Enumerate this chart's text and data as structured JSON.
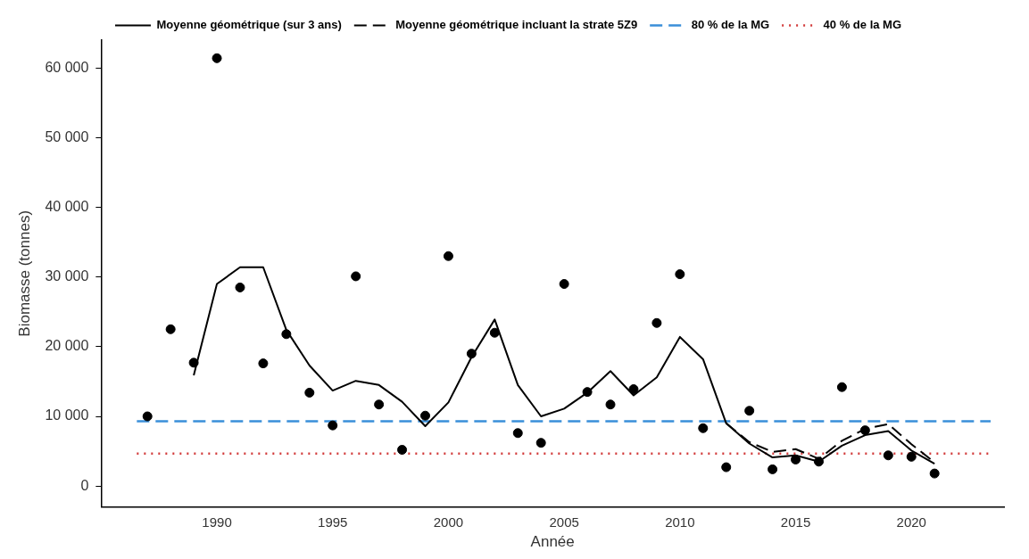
{
  "chart_data": {
    "type": "line",
    "xlabel": "Année",
    "ylabel": "Biomasse (tonnes)",
    "xlim": [
      1985,
      2024
    ],
    "xticks": [
      1990,
      1995,
      2000,
      2005,
      2010,
      2015,
      2020
    ],
    "ylim": [
      -3000,
      64000
    ],
    "yticks": [
      {
        "value": 0,
        "label": "0"
      },
      {
        "value": 10000,
        "label": "10 000"
      },
      {
        "value": 20000,
        "label": "20 000"
      },
      {
        "value": 30000,
        "label": "30 000"
      },
      {
        "value": 40000,
        "label": "40 000"
      },
      {
        "value": 50000,
        "label": "50 000"
      },
      {
        "value": 60000,
        "label": "60 000"
      }
    ],
    "grid": false,
    "legend": "top",
    "series": [
      {
        "type": "scatter",
        "marker": "circle",
        "color": "#000000",
        "x": [
          1987,
          1988,
          1989,
          1990,
          1991,
          1992,
          1993,
          1994,
          1995,
          1996,
          1997,
          1998,
          1999,
          2000,
          2001,
          2002,
          2003,
          2004,
          2005,
          2006,
          2007,
          2008,
          2009,
          2010,
          2011,
          2012,
          2013,
          2014,
          2015,
          2016,
          2017,
          2018,
          2019,
          2020,
          2021
        ],
        "values": [
          10000,
          22500,
          17700,
          61400,
          28500,
          17600,
          21800,
          13400,
          8700,
          30100,
          11700,
          5200,
          10100,
          33000,
          19000,
          22000,
          7600,
          6200,
          29000,
          13500,
          11700,
          13900,
          23400,
          30400,
          8300,
          2700,
          10800,
          2400,
          3800,
          3500,
          14200,
          8000,
          4400,
          4200,
          1800
        ]
      },
      {
        "name": "Moyenne géométrique (sur 3 ans)",
        "marker": "none",
        "line_style": "solid",
        "color": "#000000",
        "x": [
          1989,
          1990,
          1991,
          1992,
          1993,
          1994,
          1995,
          1996,
          1997,
          1998,
          1999,
          2000,
          2001,
          2002,
          2003,
          2004,
          2005,
          2006,
          2007,
          2008,
          2009,
          2010,
          2011,
          2012,
          2013,
          2014,
          2015,
          2016,
          2017,
          2018,
          2019,
          2020,
          2021
        ],
        "values": [
          15900,
          29000,
          31400,
          31400,
          22400,
          17300,
          13700,
          15100,
          14500,
          12100,
          8600,
          12000,
          18500,
          23900,
          14500,
          10000,
          11100,
          13400,
          16500,
          13000,
          15600,
          21400,
          18200,
          9000,
          6100,
          4100,
          4400,
          3500,
          5800,
          7300,
          7900,
          5100,
          3200
        ]
      },
      {
        "name": "Moyenne géométrique incluant la strate 5Z9",
        "marker": "none",
        "line_style": "dashed",
        "color": "#000000",
        "x": [
          2012,
          2013,
          2014,
          2015,
          2016,
          2017,
          2018,
          2019,
          2020,
          2021
        ],
        "values": [
          9000,
          6300,
          4900,
          5300,
          3900,
          6500,
          8200,
          8900,
          6000,
          3400
        ]
      }
    ],
    "ref_lines": [
      {
        "axis": "y",
        "value": 9300,
        "label": "80 % de la MG",
        "color": "#3a8fd9",
        "line_style": "dashed"
      },
      {
        "axis": "y",
        "value": 4650,
        "label": "40 % de la MG",
        "color": "#d23b3b",
        "line_style": "dotted"
      }
    ]
  }
}
